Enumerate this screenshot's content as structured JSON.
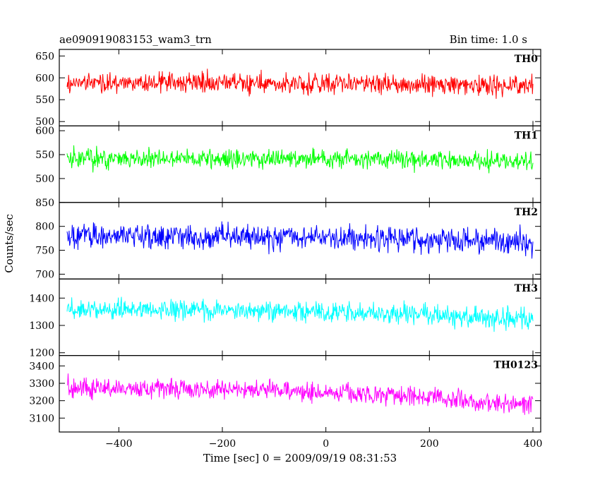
{
  "header": {
    "title": "ae090919083153_wam3_trn",
    "bin_time": "Bin time: 1.0 s"
  },
  "chart_data": {
    "type": "line",
    "title": "ae090919083153_wam3_trn",
    "subtitle": "Bin time: 1.0 s",
    "xlabel": "Time [sec] 0 = 2009/09/19 08:31:53",
    "ylabel": "Counts/sec",
    "xlim": [
      -515,
      415
    ],
    "x_ticks": [
      -400,
      -200,
      0,
      200,
      400
    ],
    "x_tick_labels": [
      "−400",
      "−200",
      "0",
      "200",
      "400"
    ],
    "x_range_data": [
      -500,
      400
    ],
    "grid": false,
    "panels": [
      {
        "name": "TH0",
        "color": "#ff0000",
        "ylim": [
          490,
          665
        ],
        "y_ticks": [
          500,
          550,
          600,
          650
        ],
        "y_tick_labels": [
          "500",
          "550",
          "600",
          "650"
        ],
        "profile": [
          {
            "x": -500,
            "mean": 588,
            "spread": 28
          },
          {
            "x": -300,
            "mean": 590,
            "spread": 30
          },
          {
            "x": -100,
            "mean": 588,
            "spread": 30
          },
          {
            "x": 100,
            "mean": 585,
            "spread": 30
          },
          {
            "x": 400,
            "mean": 582,
            "spread": 30
          }
        ]
      },
      {
        "name": "TH1",
        "color": "#00ff00",
        "ylim": [
          450,
          610
        ],
        "y_ticks": [
          500,
          550,
          600
        ],
        "y_tick_labels": [
          "500",
          "550",
          "600"
        ],
        "profile": [
          {
            "x": -500,
            "mean": 543,
            "spread": 26
          },
          {
            "x": -200,
            "mean": 542,
            "spread": 26
          },
          {
            "x": 100,
            "mean": 540,
            "spread": 26
          },
          {
            "x": 400,
            "mean": 536,
            "spread": 26
          }
        ]
      },
      {
        "name": "TH2",
        "color": "#0000ff",
        "ylim": [
          690,
          850
        ],
        "y_ticks": [
          700,
          750,
          800,
          850
        ],
        "y_tick_labels": [
          "700",
          "750",
          "800",
          "850"
        ],
        "profile": [
          {
            "x": -500,
            "mean": 780,
            "spread": 34
          },
          {
            "x": -200,
            "mean": 778,
            "spread": 34
          },
          {
            "x": 100,
            "mean": 775,
            "spread": 34
          },
          {
            "x": 400,
            "mean": 765,
            "spread": 34
          }
        ]
      },
      {
        "name": "TH3",
        "color": "#00ffff",
        "ylim": [
          1190,
          1470
        ],
        "y_ticks": [
          1200,
          1300,
          1400
        ],
        "y_tick_labels": [
          "1200",
          "1300",
          "1400"
        ],
        "profile": [
          {
            "x": -500,
            "mean": 1362,
            "spread": 50
          },
          {
            "x": -200,
            "mean": 1358,
            "spread": 50
          },
          {
            "x": 100,
            "mean": 1345,
            "spread": 50
          },
          {
            "x": 400,
            "mean": 1320,
            "spread": 50
          }
        ]
      },
      {
        "name": "TH0123",
        "color": "#ff00ff",
        "ylim": [
          3020,
          3460
        ],
        "y_ticks": [
          3100,
          3200,
          3300,
          3400
        ],
        "y_tick_labels": [
          "3100",
          "3200",
          "3300",
          "3400"
        ],
        "profile": [
          {
            "x": -500,
            "mean": 3272,
            "spread": 75
          },
          {
            "x": -200,
            "mean": 3265,
            "spread": 75
          },
          {
            "x": 100,
            "mean": 3240,
            "spread": 75
          },
          {
            "x": 400,
            "mean": 3175,
            "spread": 75
          }
        ]
      }
    ]
  }
}
